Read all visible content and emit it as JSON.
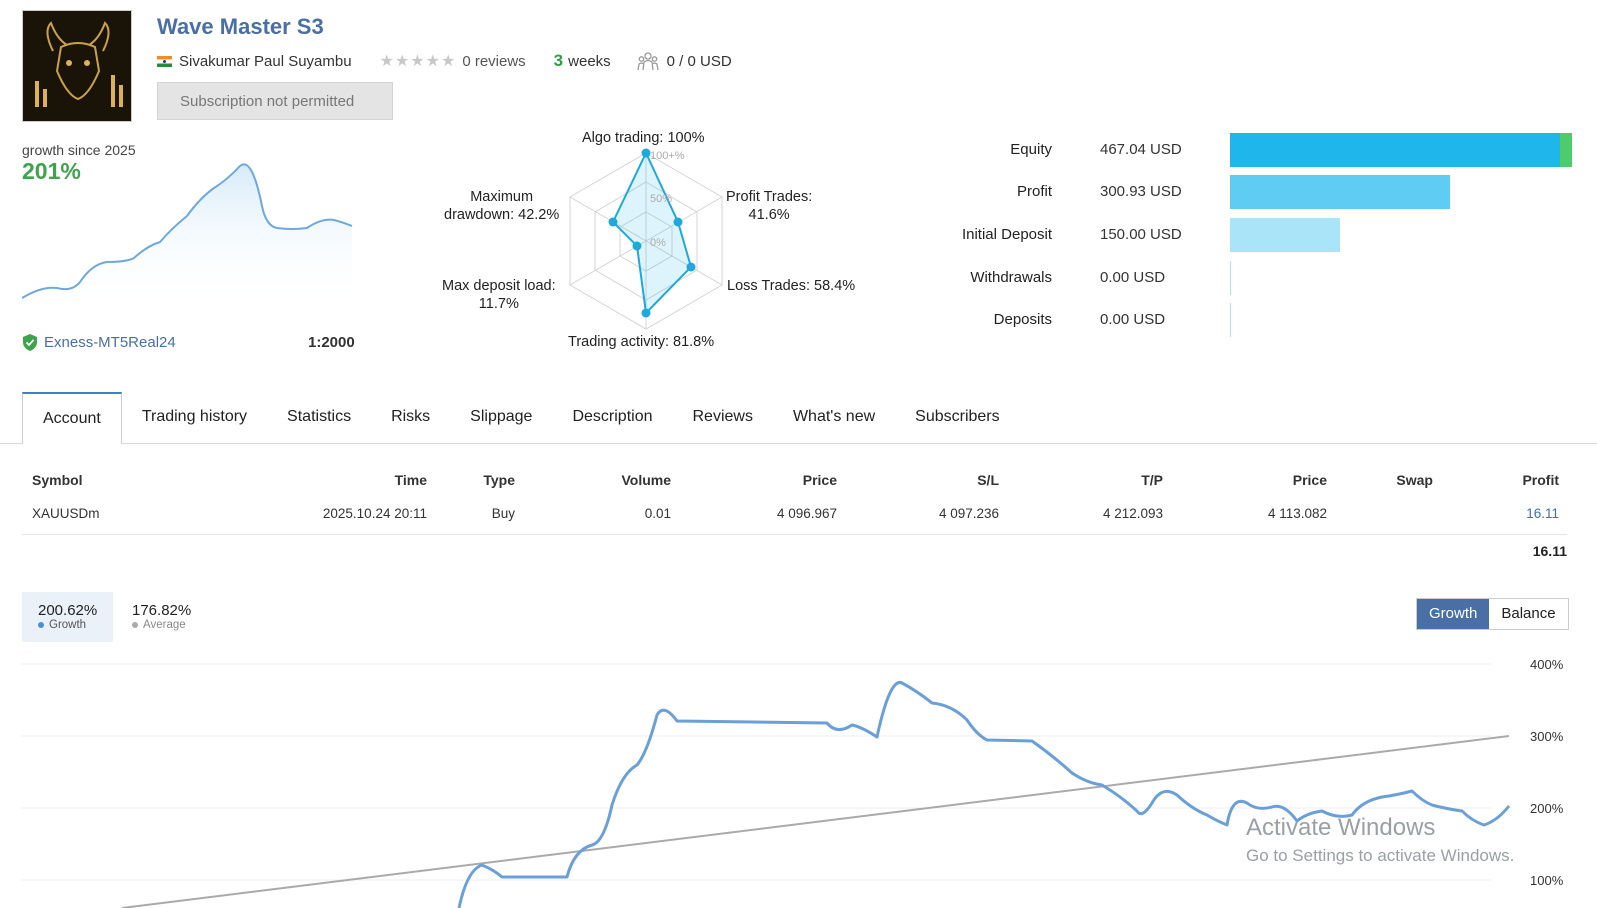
{
  "header": {
    "title": "Wave Master S3",
    "author": "Sivakumar Paul Suyambu",
    "stars": "★★★★★",
    "reviews": "0 reviews",
    "weeks_num": "3",
    "weeks_label": "weeks",
    "subscribers_value": "0 / 0 USD",
    "subscribe_button": "Subscription not permitted"
  },
  "growth_summary": {
    "label": "growth since 2025",
    "percent": "201%",
    "broker": "Exness-MT5Real24",
    "leverage": "1:2000"
  },
  "radar": {
    "algo": "Algo trading: 100%",
    "profit_trades_1": "Profit Trades:",
    "profit_trades_2": "41.6%",
    "loss_trades": "Loss Trades: 58.4%",
    "trading_activity": "Trading activity: 81.8%",
    "max_load_1": "Max deposit load:",
    "max_load_2": "11.7%",
    "drawdown_1": "Maximum",
    "drawdown_2": "drawdown: 42.2%",
    "scale_100": "100+%",
    "scale_50": "50%",
    "scale_0": "0%"
  },
  "equity": [
    {
      "label": "Equity",
      "value": "467.04 USD"
    },
    {
      "label": "Profit",
      "value": "300.93 USD"
    },
    {
      "label": "Initial Deposit",
      "value": "150.00 USD"
    },
    {
      "label": "Withdrawals",
      "value": "0.00 USD"
    },
    {
      "label": "Deposits",
      "value": "0.00 USD"
    }
  ],
  "tabs": [
    "Account",
    "Trading history",
    "Statistics",
    "Risks",
    "Slippage",
    "Description",
    "Reviews",
    "What's new",
    "Subscribers"
  ],
  "table": {
    "headers": [
      "Symbol",
      "Time",
      "Type",
      "Volume",
      "Price",
      "S/L",
      "T/P",
      "Price",
      "Swap",
      "Profit"
    ],
    "row": [
      "XAUUSDm",
      "2025.10.24 20:11",
      "Buy",
      "0.01",
      "4 096.967",
      "4 097.236",
      "4 212.093",
      "4 113.082",
      "",
      "16.11"
    ],
    "total": "16.11"
  },
  "growth_chart": {
    "growth_value": "200.62%",
    "growth_label": "Growth",
    "average_value": "176.82%",
    "average_label": "Average",
    "toggle_growth": "Growth",
    "toggle_balance": "Balance",
    "y_ticks": [
      "400%",
      "300%",
      "200%",
      "100%"
    ]
  },
  "watermark": {
    "line1": "Activate Windows",
    "line2": "Go to Settings to activate Windows."
  },
  "colors": {
    "accent": "#4a6fa5",
    "green": "#3fa34d",
    "equity_bar": "#1fb6ec",
    "profit_bar": "#5fcdf3",
    "deposit_bar": "#a9e4f8",
    "series_line": "#6a9fd8",
    "average_line": "#aaaaaa"
  }
}
